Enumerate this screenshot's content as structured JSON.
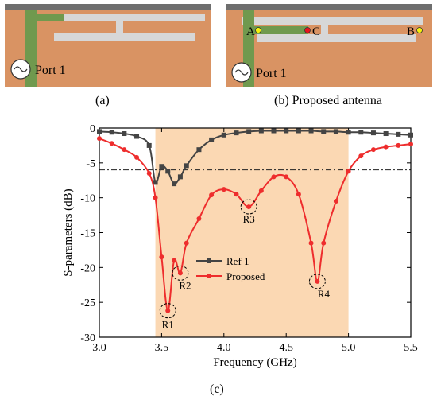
{
  "captions": {
    "a": "(a)",
    "b": "(b) Proposed antenna",
    "c": "(c)"
  },
  "panel_a": {
    "port_label": "Port 1"
  },
  "panel_b": {
    "port_label": "Port 1",
    "point_a": "A",
    "point_b": "B",
    "point_c": "C"
  },
  "colors": {
    "substrate": "#d99363",
    "ground_strip": "#6e6e6e",
    "feed": "#70994e",
    "slot": "#d7d7d7",
    "band_fill": "#fbd8b3",
    "ref_series": "#444444",
    "proposed_series": "#ee2d2d",
    "point_yellow": "#f4f10a",
    "point_red": "#e8141c"
  },
  "chart_data": {
    "type": "line",
    "xlabel": "Frequency (GHz)",
    "ylabel": "S-parameters (dB)",
    "xlim": [
      3.0,
      5.5
    ],
    "ylim": [
      -30,
      0
    ],
    "xticks": [
      "3.0",
      "3.5",
      "4.0",
      "4.5",
      "5.0",
      "5.5"
    ],
    "yticks": [
      "0",
      "-5",
      "-10",
      "-15",
      "-20",
      "-25",
      "-30"
    ],
    "grid": false,
    "legend_position": "center-left",
    "shaded_band": [
      3.45,
      5.0
    ],
    "reference_line": -6,
    "series": [
      {
        "name": "Ref 1",
        "marker": "square",
        "x": [
          3.0,
          3.1,
          3.2,
          3.3,
          3.4,
          3.45,
          3.5,
          3.55,
          3.6,
          3.65,
          3.7,
          3.8,
          3.9,
          4.0,
          4.1,
          4.2,
          4.3,
          4.4,
          4.5,
          4.6,
          4.7,
          4.8,
          4.9,
          5.0,
          5.1,
          5.2,
          5.3,
          5.4,
          5.5
        ],
        "y": [
          -0.5,
          -0.6,
          -0.8,
          -1.2,
          -2.5,
          -7.8,
          -5.5,
          -6.2,
          -8.0,
          -7.0,
          -5.4,
          -3.1,
          -1.7,
          -1.0,
          -0.7,
          -0.5,
          -0.4,
          -0.4,
          -0.4,
          -0.4,
          -0.4,
          -0.5,
          -0.5,
          -0.6,
          -0.6,
          -0.7,
          -0.8,
          -0.9,
          -1.0
        ]
      },
      {
        "name": "Proposed",
        "marker": "circle",
        "x": [
          3.0,
          3.1,
          3.2,
          3.3,
          3.4,
          3.45,
          3.5,
          3.55,
          3.6,
          3.65,
          3.7,
          3.8,
          3.9,
          4.0,
          4.1,
          4.2,
          4.3,
          4.4,
          4.5,
          4.6,
          4.7,
          4.75,
          4.8,
          4.9,
          5.0,
          5.1,
          5.2,
          5.3,
          5.4,
          5.5
        ],
        "y": [
          -1.5,
          -2.2,
          -3.1,
          -4.2,
          -6.5,
          -10.0,
          -18.5,
          -26.2,
          -19.0,
          -20.8,
          -16.5,
          -13.0,
          -9.6,
          -8.8,
          -9.5,
          -11.3,
          -9.0,
          -7.0,
          -7.0,
          -9.5,
          -16.5,
          -22.0,
          -16.5,
          -10.5,
          -6.2,
          -4.0,
          -3.1,
          -2.7,
          -2.5,
          -2.3
        ]
      }
    ],
    "annotations": [
      {
        "label": "R1",
        "x": 3.55,
        "y": -26.2
      },
      {
        "label": "R2",
        "x": 3.65,
        "y": -20.8
      },
      {
        "label": "R3",
        "x": 4.2,
        "y": -11.3
      },
      {
        "label": "R4",
        "x": 4.75,
        "y": -22.0
      }
    ]
  }
}
